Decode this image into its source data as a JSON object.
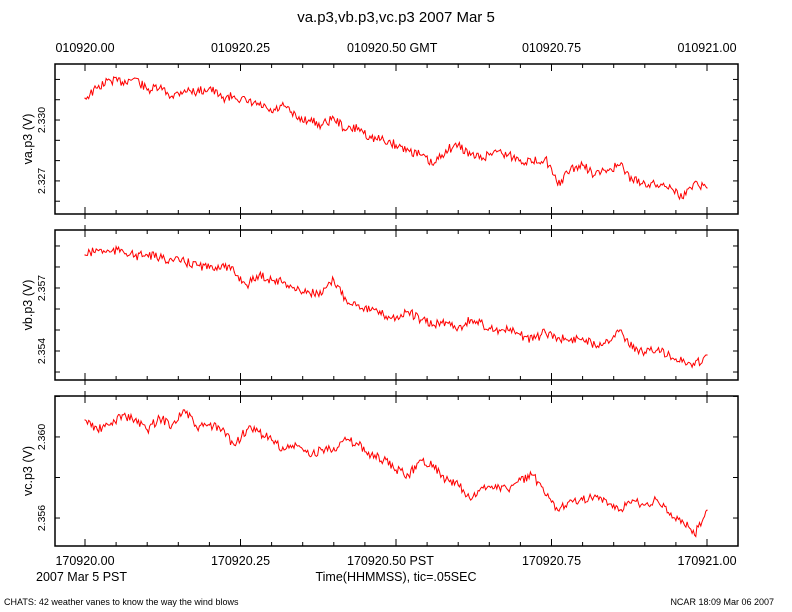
{
  "chart_data": {
    "type": "line",
    "title": "va.p3,vb.p3,vc.p3 2007 Mar 5",
    "top_axis": {
      "tick_labels": [
        "010920.00",
        "010920.25",
        "010920.50 GMT",
        "010920.75",
        "010921.00"
      ]
    },
    "bottom_axis": {
      "tick_labels": [
        "170920.00",
        "170920.25",
        "170920.50 PST",
        "170920.75",
        "170921.00"
      ],
      "date_label": "2007 Mar  5 PST",
      "xlabel": "Time(HHMMSS), tic=.05SEC"
    },
    "xlim": [
      0,
      1.0
    ],
    "x_major_ticks": [
      0,
      0.25,
      0.5,
      0.75,
      1.0
    ],
    "x_minor_step": 0.05,
    "x_step": 0.02,
    "line_color": "#ff0000",
    "panels": [
      {
        "ylabel": "va.p3 (V)",
        "ylim": [
          2.32537,
          2.33276
        ],
        "y_tick_step": 0.001,
        "y_tick_labels": [
          {
            "value": 2.33,
            "label": "2.330"
          },
          {
            "value": 2.327,
            "label": "2.327"
          }
        ],
        "values": [
          2.33108,
          2.33158,
          2.33197,
          2.33187,
          2.33207,
          2.33148,
          2.33158,
          2.33118,
          2.33148,
          2.33138,
          2.33158,
          2.33108,
          2.33118,
          2.33089,
          2.33074,
          2.33039,
          2.33069,
          2.3301,
          2.33,
          2.32975,
          2.3301,
          2.32951,
          2.32961,
          2.32911,
          2.32901,
          2.32877,
          2.32852,
          2.32827,
          2.32778,
          2.32852,
          2.32877,
          2.32827,
          2.32813,
          2.32852,
          2.32827,
          2.32803,
          2.32793,
          2.32813,
          2.3268,
          2.32754,
          2.32778,
          2.32729,
          2.32754,
          2.32778,
          2.32704,
          2.32689,
          2.3268,
          2.3268,
          2.32616,
          2.32694,
          2.32665
        ]
      },
      {
        "ylabel": "vb.p3 (V)",
        "ylim": [
          2.35262,
          2.35976
        ],
        "y_tick_step": 0.001,
        "y_tick_labels": [
          {
            "value": 2.357,
            "label": "2.357"
          },
          {
            "value": 2.354,
            "label": "2.354"
          }
        ],
        "values": [
          2.35857,
          2.35881,
          2.35871,
          2.35881,
          2.35852,
          2.35857,
          2.35843,
          2.35833,
          2.35824,
          2.35809,
          2.35795,
          2.35809,
          2.35776,
          2.35714,
          2.35762,
          2.35738,
          2.35729,
          2.3569,
          2.35681,
          2.35667,
          2.35738,
          2.35643,
          2.35619,
          2.35595,
          2.35571,
          2.35557,
          2.35586,
          2.35548,
          2.35524,
          2.35538,
          2.3551,
          2.35548,
          2.35524,
          2.355,
          2.355,
          2.35476,
          2.35452,
          2.3549,
          2.35462,
          2.35452,
          2.35462,
          2.35429,
          2.35452,
          2.355,
          2.35414,
          2.35395,
          2.35405,
          2.35381,
          2.35348,
          2.35333,
          2.35381
        ]
      },
      {
        "ylabel": "vc.p3 (V)",
        "ylim": [
          2.35462,
          2.36202
        ],
        "y_tick_step": 0.002,
        "y_tick_labels": [
          {
            "value": 2.36,
            "label": "2.360"
          },
          {
            "value": 2.356,
            "label": "2.356"
          }
        ],
        "values": [
          2.36084,
          2.36035,
          2.36059,
          2.36109,
          2.36084,
          2.36035,
          2.36094,
          2.36059,
          2.36133,
          2.36044,
          2.36059,
          2.36035,
          2.3596,
          2.36035,
          2.36025,
          2.35985,
          2.35936,
          2.3596,
          2.35911,
          2.35936,
          2.35946,
          2.35985,
          2.3596,
          2.35911,
          2.35886,
          2.35837,
          2.35812,
          2.35886,
          2.35862,
          2.35788,
          2.35763,
          2.35689,
          2.35748,
          2.35763,
          2.35738,
          2.35788,
          2.35812,
          2.35713,
          2.35639,
          2.35689,
          2.35689,
          2.35713,
          2.35664,
          2.35639,
          2.35689,
          2.35664,
          2.35689,
          2.35615,
          2.3559,
          2.35516,
          2.35639
        ]
      }
    ]
  },
  "footer": {
    "left": "CHATS: 42 weather vanes to know the way the wind blows",
    "right": "NCAR 18:09 Mar 06 2007"
  }
}
